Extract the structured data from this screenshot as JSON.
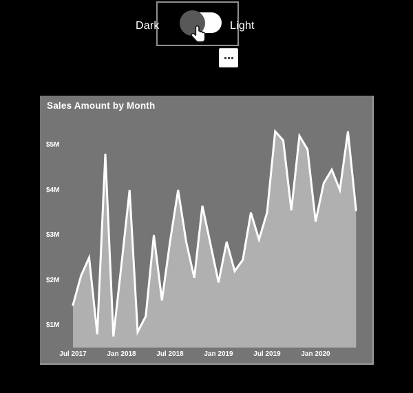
{
  "page": {
    "background": "#000000"
  },
  "theme_toggle": {
    "left_label": "Dark",
    "right_label": "Light",
    "state": "dark",
    "track_color": "#ffffff",
    "knob_color": "#585858",
    "border_color": "#8f8f8f",
    "cursor_icon": "hand-pointer-icon"
  },
  "more_options_button": {
    "icon": "ellipsis-icon",
    "background": "#fcfcfc",
    "dot_color": "#3d3d3d"
  },
  "chart_panel": {
    "title": "Sales Amount by Month",
    "background": "#757575",
    "title_color": "#ffffff"
  },
  "chart_data": {
    "type": "area",
    "title": "Sales Amount by Month",
    "unit": "$M",
    "x": [
      "Jul 2017",
      "Aug 2017",
      "Sep 2017",
      "Oct 2017",
      "Nov 2017",
      "Dec 2017",
      "Jan 2018",
      "Feb 2018",
      "Mar 2018",
      "Apr 2018",
      "May 2018",
      "Jun 2018",
      "Jul 2018",
      "Aug 2018",
      "Sep 2018",
      "Oct 2018",
      "Nov 2018",
      "Dec 2018",
      "Jan 2019",
      "Feb 2019",
      "Mar 2019",
      "Apr 2019",
      "May 2019",
      "Jun 2019",
      "Jul 2019",
      "Aug 2019",
      "Sep 2019",
      "Oct 2019",
      "Nov 2019",
      "Dec 2019",
      "Jan 2020",
      "Feb 2020",
      "Mar 2020",
      "Apr 2020",
      "May 2020",
      "Jun 2020"
    ],
    "values": [
      1.45,
      2.1,
      2.5,
      0.8,
      4.8,
      0.75,
      2.35,
      4.0,
      0.85,
      1.2,
      3.0,
      1.55,
      2.85,
      4.0,
      2.85,
      2.05,
      3.65,
      2.8,
      1.95,
      2.85,
      2.2,
      2.45,
      3.5,
      2.9,
      3.5,
      5.3,
      5.1,
      3.55,
      5.2,
      4.9,
      3.3,
      4.15,
      4.45,
      4.0,
      5.3,
      3.55
    ],
    "x_tick_labels": [
      "Jul 2017",
      "Jan 2018",
      "Jul 2018",
      "Jan 2019",
      "Jul 2019",
      "Jan 2020"
    ],
    "y_tick_labels": [
      "$1M",
      "$2M",
      "$3M",
      "$4M",
      "$5M"
    ],
    "y_tick_values": [
      1,
      2,
      3,
      4,
      5
    ],
    "ylim": [
      0.5,
      5.5
    ],
    "grid": false,
    "legend": "none",
    "area_fill": "#b0b0b0",
    "line_color": "#ffffff",
    "label_color": "#ffffff"
  }
}
